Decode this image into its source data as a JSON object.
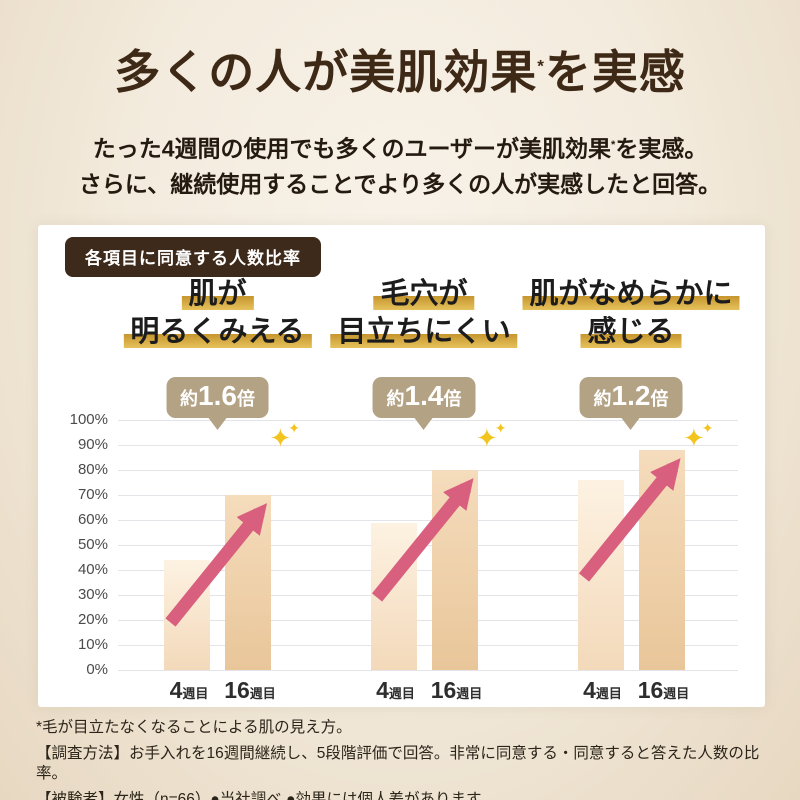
{
  "header": {
    "title_main": "多くの人が美肌効果",
    "title_asterisk": "*",
    "title_tail": "を実感",
    "subtitle_line1_pre": "たった4週間の使用でも多くのユーザーが美肌効果",
    "subtitle_asterisk": "*",
    "subtitle_line1_post": "を実感。",
    "subtitle_line2": "さらに、継続使用することでより多くの人が実感したと回答。"
  },
  "chart_data": {
    "type": "bar",
    "title": "各項目に同意する人数比率",
    "xlabel": "",
    "ylabel": "",
    "ylim": [
      0,
      100
    ],
    "grid": true,
    "yticks": [
      "0%",
      "10%",
      "20%",
      "30%",
      "40%",
      "50%",
      "60%",
      "70%",
      "80%",
      "90%",
      "100%"
    ],
    "categories": [
      {
        "num": "4",
        "unit": "週目"
      },
      {
        "num": "16",
        "unit": "週目"
      }
    ],
    "groups": [
      {
        "header_lines": [
          "肌が",
          "明るくみえる"
        ],
        "multiplier": {
          "prefix": "約",
          "value": "1.6",
          "suffix": "倍"
        },
        "values": [
          44,
          70
        ]
      },
      {
        "header_lines": [
          "毛穴が",
          "目立ちにくい"
        ],
        "multiplier": {
          "prefix": "約",
          "value": "1.4",
          "suffix": "倍"
        },
        "values": [
          59,
          80
        ]
      },
      {
        "header_lines": [
          "肌がなめらかに",
          "感じる"
        ],
        "multiplier": {
          "prefix": "約",
          "value": "1.2",
          "suffix": "倍"
        },
        "values": [
          76,
          88
        ]
      }
    ]
  },
  "icons": {
    "sparkle": "✦"
  },
  "colors": {
    "title_brown": "#3e2917",
    "badge_bg": "#3e2a1a",
    "bubble_bg": "#b3a284",
    "arrow_pink": "#d85f7d",
    "bar_week4": "#f8e6cf",
    "bar_week16": "#ecca9f",
    "highlight_gold": "#d4a63f",
    "sparkle_gold": "#f2c41d",
    "gridline": "#e4e4e8"
  },
  "footnotes": [
    "*毛が目立たなくなることによる肌の見え方。",
    "【調査方法】お手入れを16週間継続し、5段階評価で回答。非常に同意する・同意すると答えた人数の比率。",
    "【被験者】女性（n=66）●当社調べ ●効果には個人差があります"
  ]
}
